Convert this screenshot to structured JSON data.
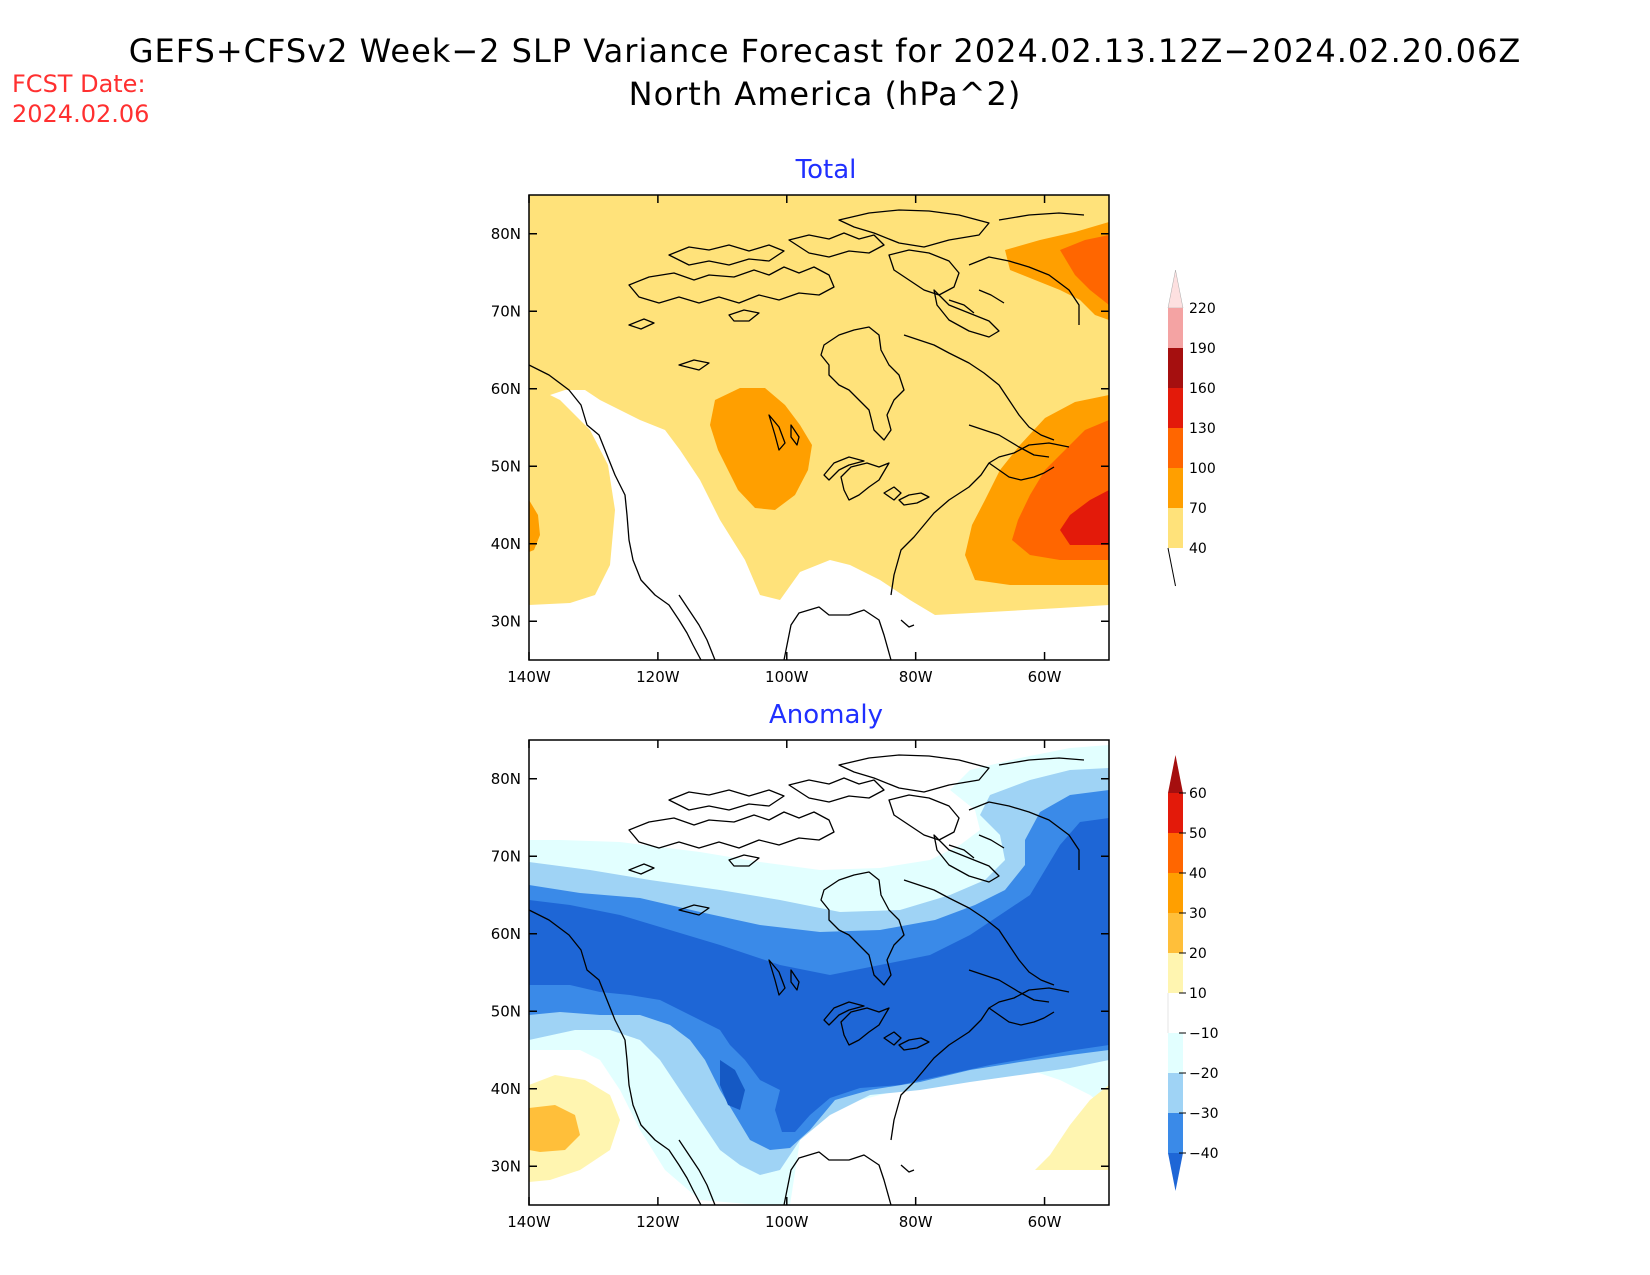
{
  "header": {
    "title_line1": "GEFS+CFSv2 Week−2 SLP Variance Forecast for 2024.02.13.12Z−2024.02.20.06Z",
    "title_line2": "North America (hPa^2)",
    "fcst_label": "FCST Date:",
    "fcst_date": "2024.02.06"
  },
  "map": {
    "lon_ticks": [
      "140W",
      "120W",
      "100W",
      "80W",
      "60W"
    ],
    "lat_ticks": [
      "80N",
      "70N",
      "60N",
      "50N",
      "40N",
      "30N"
    ]
  },
  "panels": [
    {
      "title": "Total",
      "colorbar": {
        "levels": [
          "220",
          "190",
          "160",
          "130",
          "100",
          "70",
          "40"
        ],
        "colors": [
          "#fde0e0",
          "#f4a3a3",
          "#a50f0f",
          "#e31a0a",
          "#ff6600",
          "#ff9f00",
          "#ffe27a"
        ]
      }
    },
    {
      "title": "Anomaly",
      "colorbar": {
        "levels": [
          "60",
          "50",
          "40",
          "30",
          "20",
          "10",
          "−10",
          "−20",
          "−30",
          "−40"
        ],
        "colors": [
          "#a50f0f",
          "#e31a0a",
          "#ff6600",
          "#ff9f00",
          "#ffbf3a",
          "#fff5b0",
          "#ffffff",
          "#e2ffff",
          "#9fd3f5",
          "#3a8ae8",
          "#1e66d6"
        ]
      }
    }
  ]
}
